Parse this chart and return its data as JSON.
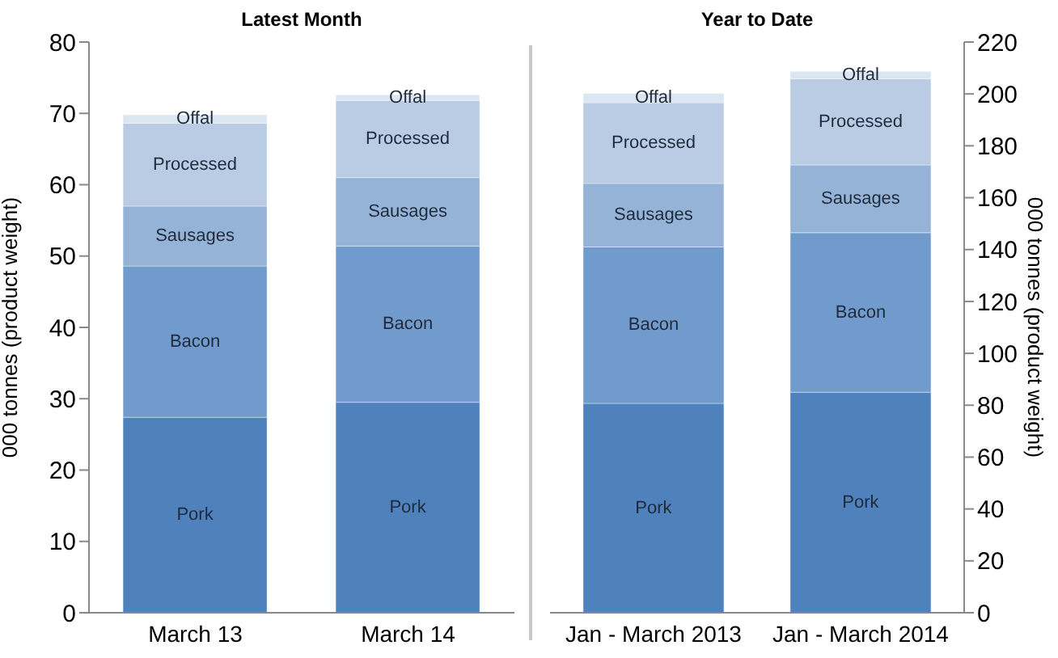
{
  "chart_data": [
    {
      "type": "bar",
      "title": "Latest Month",
      "ylabel": "000 tonnes  (product weight)",
      "categories": [
        "March 13",
        "March 14"
      ],
      "stacked": true,
      "ylim": [
        0,
        80
      ],
      "yticks": [
        0,
        10,
        20,
        30,
        40,
        50,
        60,
        70,
        80
      ],
      "series": [
        {
          "name": "Pork",
          "color": "#4f81bd",
          "values": [
            27.4,
            29.5
          ]
        },
        {
          "name": "Bacon",
          "color": "#729bcd",
          "values": [
            21.2,
            21.9
          ]
        },
        {
          "name": "Sausages",
          "color": "#95b3d7",
          "values": [
            8.4,
            9.6
          ]
        },
        {
          "name": "Processed",
          "color": "#b9cce4",
          "values": [
            11.6,
            10.8
          ]
        },
        {
          "name": "Offal",
          "color": "#dce6f2",
          "values": [
            1.2,
            0.8
          ]
        }
      ]
    },
    {
      "type": "bar",
      "title": "Year to Date",
      "y2label": "000 tonnes (product weight)",
      "categories": [
        "Jan - March 2013",
        "Jan - March 2014"
      ],
      "stacked": true,
      "y2lim": [
        0,
        220
      ],
      "y2ticks": [
        0,
        20,
        40,
        60,
        80,
        100,
        120,
        140,
        160,
        180,
        200,
        220
      ],
      "series": [
        {
          "name": "Pork",
          "color": "#4f81bd",
          "values": [
            80.7,
            85.0
          ],
          "axis": "y2"
        },
        {
          "name": "Bacon",
          "color": "#729bcd",
          "values": [
            60.3,
            61.5
          ],
          "axis": "y2"
        },
        {
          "name": "Sausages",
          "color": "#95b3d7",
          "values": [
            24.5,
            26.1
          ],
          "axis": "y2"
        },
        {
          "name": "Processed",
          "color": "#b9cce4",
          "values": [
            31.1,
            33.2
          ],
          "axis": "y2"
        },
        {
          "name": "Offal",
          "color": "#dce6f2",
          "values": [
            3.6,
            2.9
          ],
          "axis": "y2"
        }
      ]
    }
  ]
}
